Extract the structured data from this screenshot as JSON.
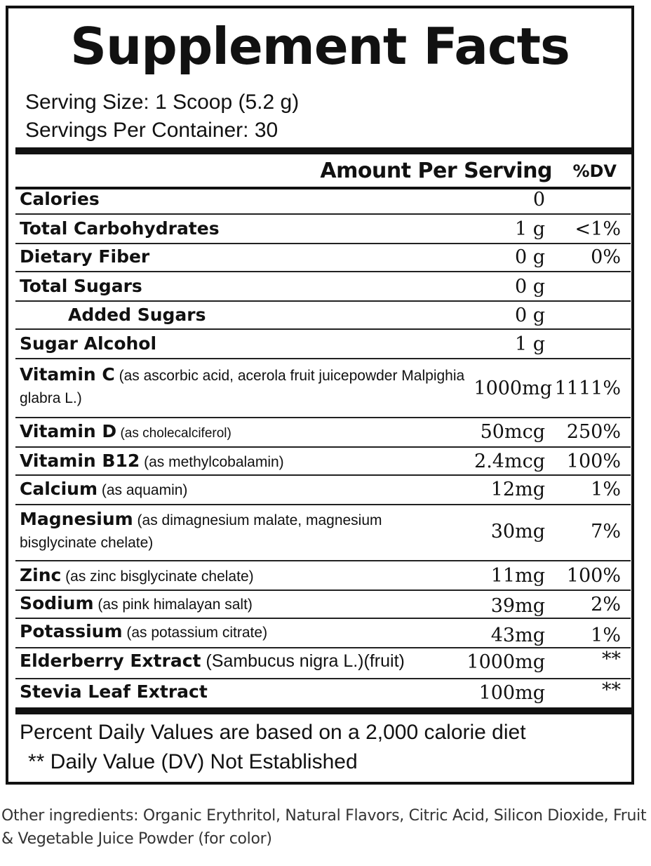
{
  "title": "Supplement Facts",
  "serving_size": "Serving Size: 1 Scoop (5.2 g)",
  "servings_per_container": "Servings Per Container: 30",
  "header": {
    "amount": "Amount Per Serving",
    "dv": "%DV"
  },
  "rows": [
    {
      "name": "Calories",
      "desc": "",
      "amount": "0",
      "dv": ""
    },
    {
      "name": "Total Carbohydrates",
      "desc": "",
      "amount": "1 g",
      "dv": "<1%"
    },
    {
      "name": "Dietary Fiber",
      "desc": "",
      "amount": "0 g",
      "dv": "0%"
    },
    {
      "name": "Total Sugars",
      "desc": "",
      "amount": "0 g",
      "dv": ""
    },
    {
      "name": "Added Sugars",
      "desc": "",
      "amount": "0 g",
      "dv": ""
    },
    {
      "name": "Sugar Alcohol",
      "desc": "",
      "amount": "1 g",
      "dv": ""
    },
    {
      "name": "Vitamin C",
      "desc": " (as ascorbic acid, acerola fruit juicepowder Malpighia glabra L.)",
      "amount": "1000mg",
      "dv": "1111%"
    },
    {
      "name": "Vitamin D",
      "desc": "  (as cholecalciferol)",
      "amount": "50mcg",
      "dv": "250%"
    },
    {
      "name": "Vitamin B12",
      "desc": "  (as methylcobalamin)",
      "amount": "2.4mcg",
      "dv": "100%"
    },
    {
      "name": "Calcium",
      "desc": "  (as aquamin)",
      "amount": "12mg",
      "dv": "1%"
    },
    {
      "name": "Magnesium",
      "desc": "  (as dimagnesium malate, magnesium bisglycinate chelate)",
      "amount": "30mg",
      "dv": "7%"
    },
    {
      "name": "Zinc",
      "desc": " (as zinc bisglycinate chelate)",
      "amount": "11mg",
      "dv": "100%"
    },
    {
      "name": "Sodium",
      "desc": " (as pink himalayan salt)",
      "amount": "39mg",
      "dv": "2%"
    },
    {
      "name": "Potassium",
      "desc": " (as potassium citrate)",
      "amount": "43mg",
      "dv": "1%"
    },
    {
      "name": "Elderberry Extract",
      "desc": " (Sambucus nigra L.)(fruit)",
      "amount": "1000mg",
      "dv": "**"
    },
    {
      "name": "Stevia Leaf Extract",
      "desc": "",
      "amount": "100mg",
      "dv": "**"
    }
  ],
  "footnote_1": "Percent Daily Values are based on a 2,000 calorie diet",
  "footnote_2": "** Daily Value (DV) Not Established",
  "other_ingredients": "Other ingredients: Organic Erythritol, Natural Flavors, Citric Acid, Silicon Dioxide, Fruit & Vegetable Juice Powder (for color)"
}
